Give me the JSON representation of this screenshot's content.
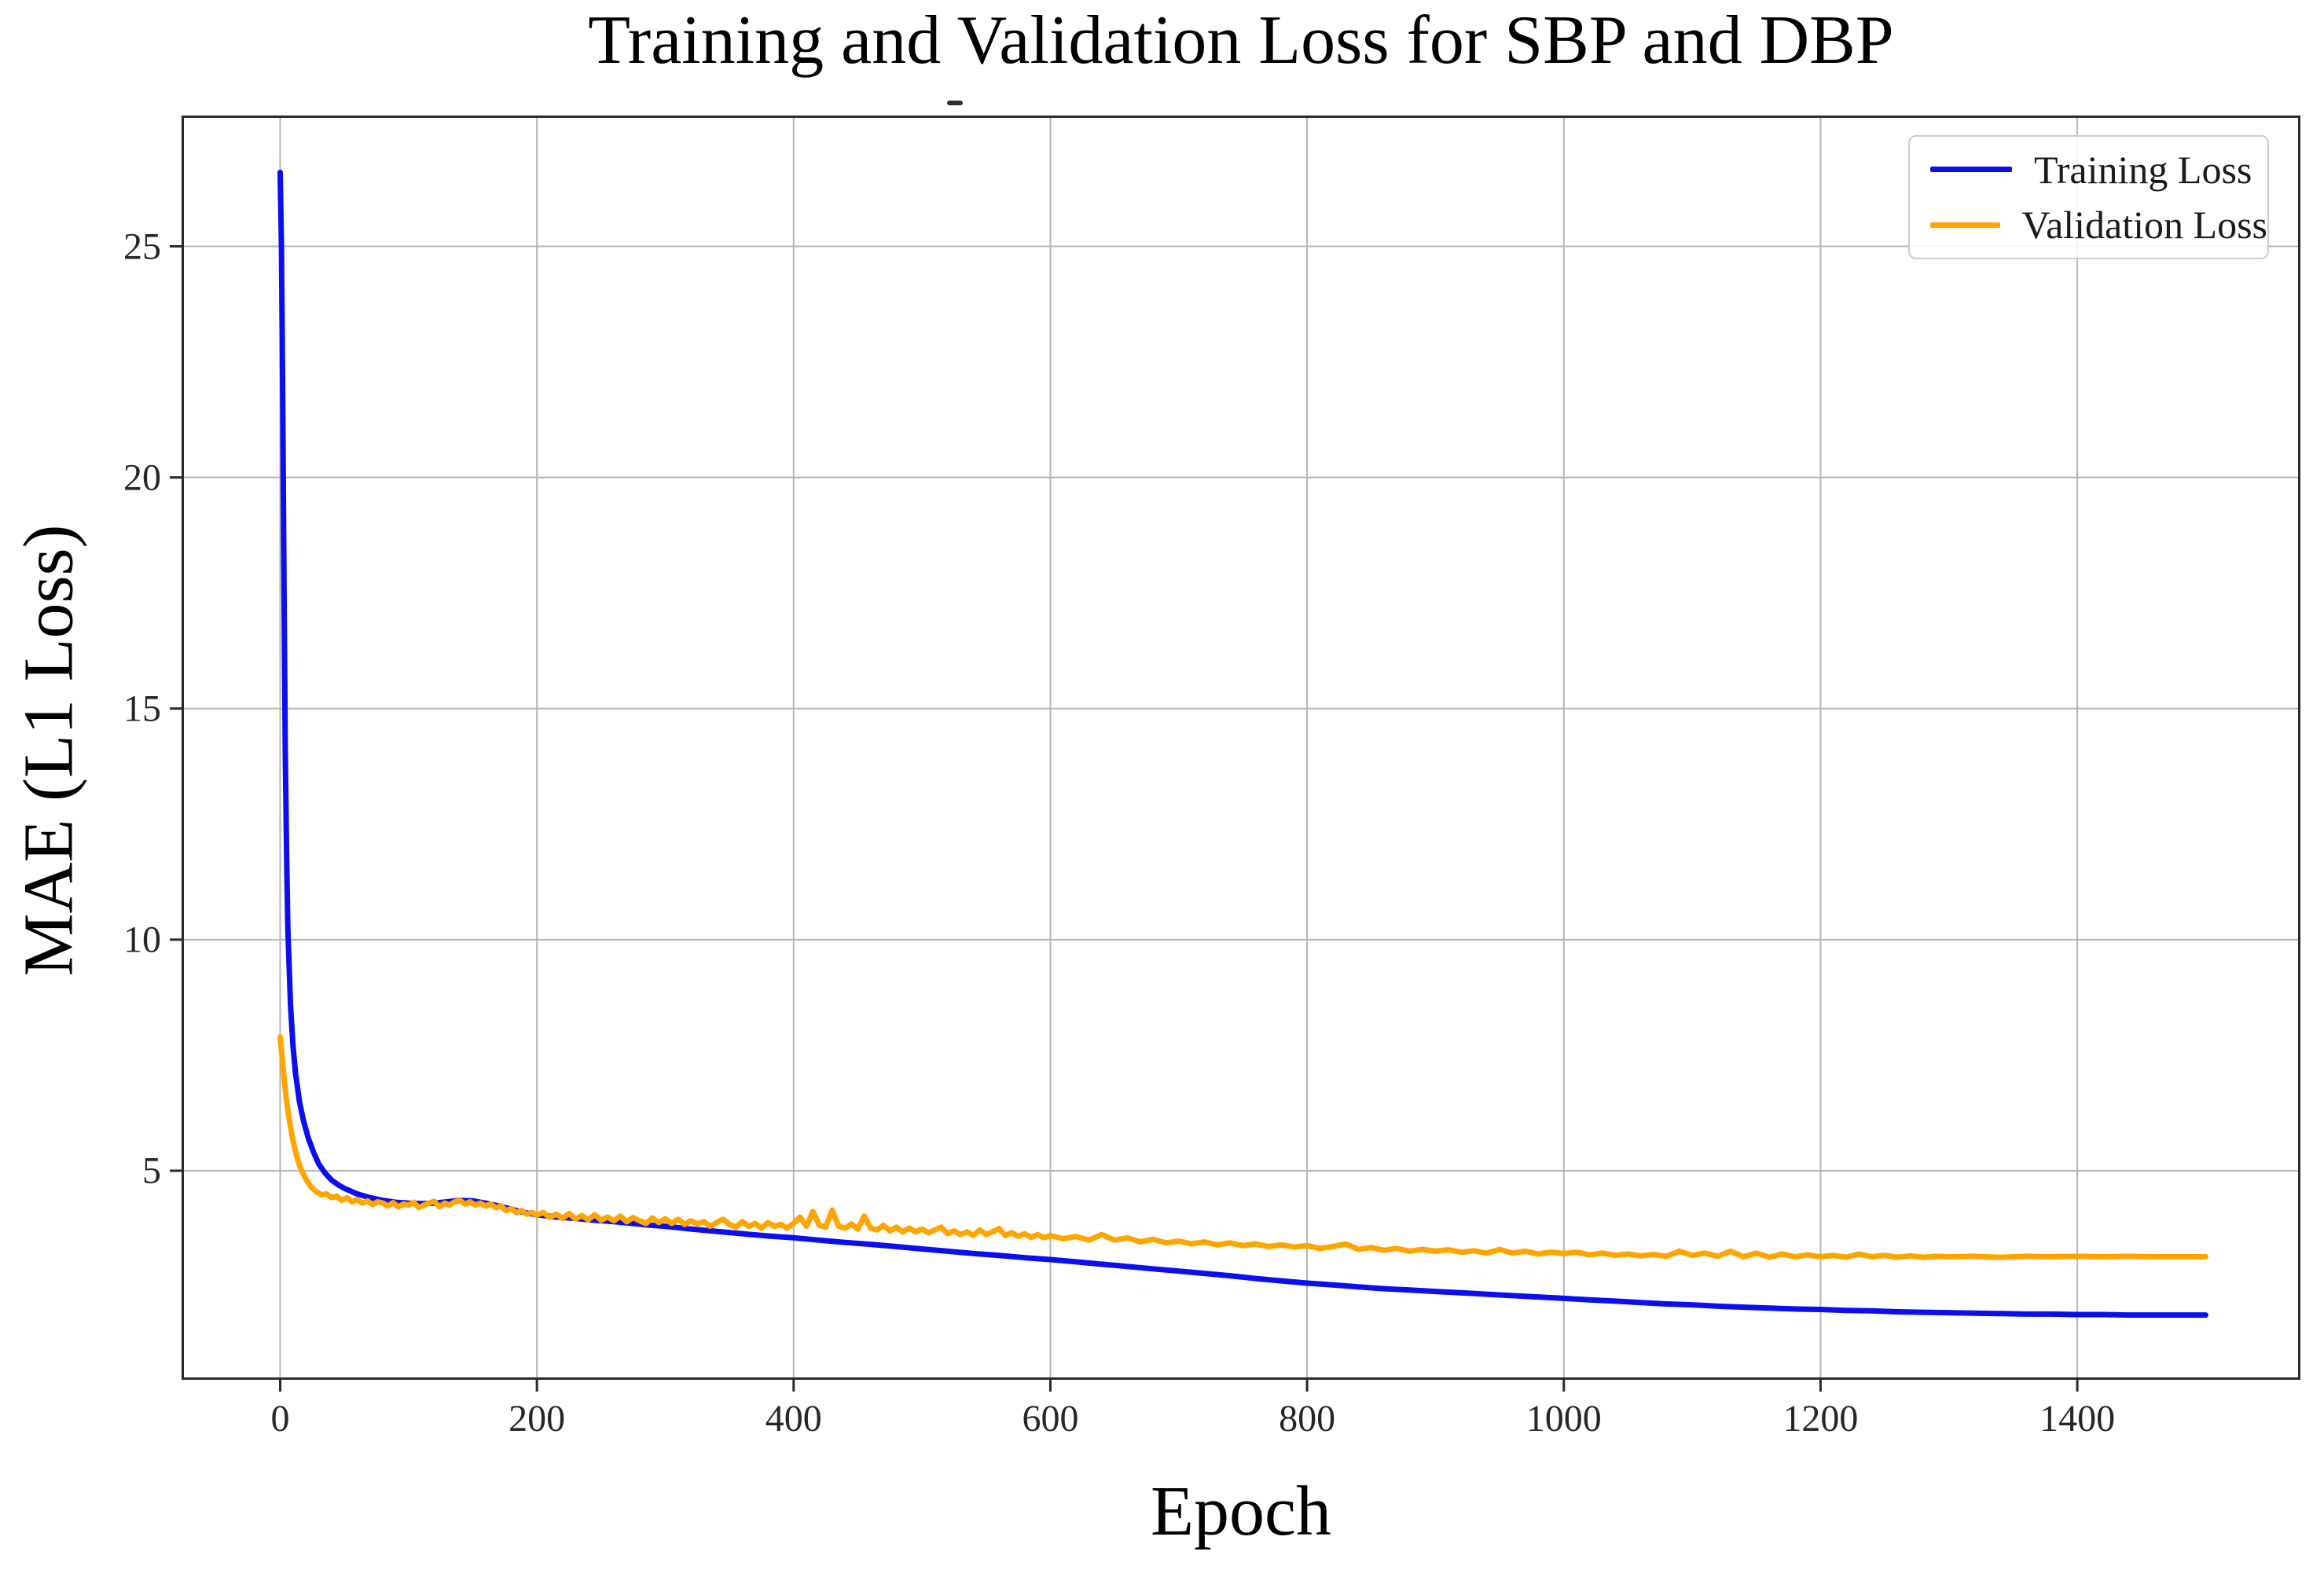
{
  "title": "Training and Validation Loss for SBP and DBP",
  "colors": {
    "training": "#0d0df2",
    "validation": "#ffa500",
    "grid": "#b5b5b5",
    "spine": "#2a2a2a",
    "tick_text": "#262626"
  },
  "chart_data": {
    "type": "line",
    "title": "Training and Validation Loss for SBP and DBP",
    "xlabel": "Epoch",
    "ylabel": "MAE (L1 Loss)",
    "xlim": [
      -75,
      1572
    ],
    "ylim": [
      0.53,
      27.78
    ],
    "xticks": [
      0,
      200,
      400,
      600,
      800,
      1000,
      1200,
      1400
    ],
    "yticks": [
      5,
      10,
      15,
      20,
      25
    ],
    "grid": true,
    "legend_position": "upper right",
    "series": [
      {
        "name": "Training Loss",
        "color": "#0d0df2",
        "points": [
          [
            0,
            26.6
          ],
          [
            1,
            25.0
          ],
          [
            2,
            21.5
          ],
          [
            3,
            17.5
          ],
          [
            4,
            14.0
          ],
          [
            5,
            11.8
          ],
          [
            6,
            10.2
          ],
          [
            8,
            8.6
          ],
          [
            10,
            7.7
          ],
          [
            12,
            7.1
          ],
          [
            15,
            6.5
          ],
          [
            18,
            6.1
          ],
          [
            22,
            5.7
          ],
          [
            26,
            5.4
          ],
          [
            30,
            5.15
          ],
          [
            35,
            4.95
          ],
          [
            40,
            4.8
          ],
          [
            45,
            4.7
          ],
          [
            50,
            4.62
          ],
          [
            60,
            4.5
          ],
          [
            70,
            4.42
          ],
          [
            80,
            4.36
          ],
          [
            90,
            4.32
          ],
          [
            100,
            4.3
          ],
          [
            110,
            4.29
          ],
          [
            120,
            4.3
          ],
          [
            130,
            4.33
          ],
          [
            140,
            4.36
          ],
          [
            150,
            4.35
          ],
          [
            160,
            4.3
          ],
          [
            170,
            4.24
          ],
          [
            180,
            4.17
          ],
          [
            190,
            4.1
          ],
          [
            200,
            4.05
          ],
          [
            215,
            4.0
          ],
          [
            230,
            3.97
          ],
          [
            245,
            3.93
          ],
          [
            260,
            3.9
          ],
          [
            275,
            3.86
          ],
          [
            290,
            3.82
          ],
          [
            300,
            3.8
          ],
          [
            320,
            3.74
          ],
          [
            340,
            3.69
          ],
          [
            360,
            3.64
          ],
          [
            380,
            3.59
          ],
          [
            400,
            3.55
          ],
          [
            420,
            3.5
          ],
          [
            440,
            3.45
          ],
          [
            460,
            3.41
          ],
          [
            480,
            3.36
          ],
          [
            500,
            3.31
          ],
          [
            520,
            3.26
          ],
          [
            540,
            3.21
          ],
          [
            560,
            3.17
          ],
          [
            580,
            3.12
          ],
          [
            600,
            3.08
          ],
          [
            620,
            3.03
          ],
          [
            640,
            2.98
          ],
          [
            660,
            2.93
          ],
          [
            680,
            2.88
          ],
          [
            700,
            2.83
          ],
          [
            720,
            2.78
          ],
          [
            740,
            2.73
          ],
          [
            760,
            2.67
          ],
          [
            780,
            2.62
          ],
          [
            800,
            2.57
          ],
          [
            820,
            2.53
          ],
          [
            840,
            2.49
          ],
          [
            860,
            2.45
          ],
          [
            880,
            2.42
          ],
          [
            900,
            2.39
          ],
          [
            920,
            2.36
          ],
          [
            940,
            2.33
          ],
          [
            960,
            2.3
          ],
          [
            980,
            2.27
          ],
          [
            1000,
            2.24
          ],
          [
            1020,
            2.21
          ],
          [
            1040,
            2.18
          ],
          [
            1060,
            2.15
          ],
          [
            1080,
            2.12
          ],
          [
            1100,
            2.1
          ],
          [
            1120,
            2.07
          ],
          [
            1140,
            2.05
          ],
          [
            1160,
            2.03
          ],
          [
            1180,
            2.01
          ],
          [
            1200,
            2.0
          ],
          [
            1220,
            1.98
          ],
          [
            1240,
            1.97
          ],
          [
            1260,
            1.95
          ],
          [
            1280,
            1.94
          ],
          [
            1300,
            1.93
          ],
          [
            1320,
            1.92
          ],
          [
            1340,
            1.91
          ],
          [
            1360,
            1.9
          ],
          [
            1380,
            1.9
          ],
          [
            1400,
            1.89
          ],
          [
            1420,
            1.89
          ],
          [
            1440,
            1.88
          ],
          [
            1460,
            1.88
          ],
          [
            1480,
            1.88
          ],
          [
            1500,
            1.88
          ]
        ]
      },
      {
        "name": "Validation Loss",
        "color": "#ffa500",
        "points": [
          [
            0,
            7.9
          ],
          [
            2,
            7.3
          ],
          [
            4,
            6.75
          ],
          [
            6,
            6.3
          ],
          [
            8,
            5.95
          ],
          [
            10,
            5.65
          ],
          [
            13,
            5.3
          ],
          [
            16,
            5.05
          ],
          [
            20,
            4.82
          ],
          [
            24,
            4.65
          ],
          [
            28,
            4.55
          ],
          [
            32,
            4.48
          ],
          [
            36,
            4.5
          ],
          [
            40,
            4.42
          ],
          [
            44,
            4.45
          ],
          [
            48,
            4.36
          ],
          [
            52,
            4.42
          ],
          [
            56,
            4.33
          ],
          [
            60,
            4.38
          ],
          [
            64,
            4.3
          ],
          [
            68,
            4.35
          ],
          [
            72,
            4.27
          ],
          [
            76,
            4.33
          ],
          [
            80,
            4.3
          ],
          [
            84,
            4.24
          ],
          [
            88,
            4.31
          ],
          [
            92,
            4.22
          ],
          [
            96,
            4.28
          ],
          [
            100,
            4.26
          ],
          [
            104,
            4.32
          ],
          [
            108,
            4.2
          ],
          [
            112,
            4.26
          ],
          [
            116,
            4.3
          ],
          [
            120,
            4.34
          ],
          [
            124,
            4.22
          ],
          [
            128,
            4.3
          ],
          [
            132,
            4.26
          ],
          [
            136,
            4.33
          ],
          [
            140,
            4.36
          ],
          [
            144,
            4.28
          ],
          [
            148,
            4.33
          ],
          [
            152,
            4.26
          ],
          [
            156,
            4.3
          ],
          [
            160,
            4.24
          ],
          [
            164,
            4.28
          ],
          [
            168,
            4.2
          ],
          [
            172,
            4.24
          ],
          [
            176,
            4.14
          ],
          [
            180,
            4.18
          ],
          [
            184,
            4.1
          ],
          [
            188,
            4.14
          ],
          [
            192,
            4.06
          ],
          [
            196,
            4.1
          ],
          [
            200,
            4.04
          ],
          [
            205,
            4.1
          ],
          [
            210,
            3.99
          ],
          [
            215,
            4.06
          ],
          [
            220,
            3.97
          ],
          [
            225,
            4.08
          ],
          [
            230,
            3.96
          ],
          [
            235,
            4.03
          ],
          [
            240,
            3.94
          ],
          [
            245,
            4.05
          ],
          [
            250,
            3.93
          ],
          [
            255,
            4.0
          ],
          [
            260,
            3.92
          ],
          [
            265,
            4.02
          ],
          [
            270,
            3.9
          ],
          [
            275,
            3.99
          ],
          [
            280,
            3.92
          ],
          [
            285,
            3.86
          ],
          [
            290,
            3.98
          ],
          [
            295,
            3.88
          ],
          [
            300,
            3.96
          ],
          [
            305,
            3.86
          ],
          [
            310,
            3.95
          ],
          [
            315,
            3.84
          ],
          [
            320,
            3.92
          ],
          [
            325,
            3.85
          ],
          [
            330,
            3.9
          ],
          [
            335,
            3.8
          ],
          [
            340,
            3.88
          ],
          [
            345,
            3.95
          ],
          [
            350,
            3.84
          ],
          [
            355,
            3.78
          ],
          [
            360,
            3.9
          ],
          [
            365,
            3.8
          ],
          [
            370,
            3.86
          ],
          [
            375,
            3.76
          ],
          [
            380,
            3.88
          ],
          [
            385,
            3.8
          ],
          [
            390,
            3.84
          ],
          [
            395,
            3.76
          ],
          [
            400,
            3.86
          ],
          [
            405,
            4.0
          ],
          [
            410,
            3.8
          ],
          [
            415,
            4.12
          ],
          [
            420,
            3.82
          ],
          [
            425,
            3.78
          ],
          [
            430,
            4.15
          ],
          [
            435,
            3.8
          ],
          [
            440,
            3.76
          ],
          [
            445,
            3.85
          ],
          [
            450,
            3.74
          ],
          [
            455,
            4.02
          ],
          [
            460,
            3.76
          ],
          [
            465,
            3.72
          ],
          [
            470,
            3.82
          ],
          [
            475,
            3.7
          ],
          [
            480,
            3.78
          ],
          [
            485,
            3.68
          ],
          [
            490,
            3.76
          ],
          [
            495,
            3.68
          ],
          [
            500,
            3.74
          ],
          [
            505,
            3.66
          ],
          [
            510,
            3.72
          ],
          [
            515,
            3.78
          ],
          [
            520,
            3.64
          ],
          [
            525,
            3.7
          ],
          [
            530,
            3.62
          ],
          [
            535,
            3.68
          ],
          [
            540,
            3.6
          ],
          [
            545,
            3.72
          ],
          [
            550,
            3.62
          ],
          [
            555,
            3.68
          ],
          [
            560,
            3.75
          ],
          [
            565,
            3.6
          ],
          [
            570,
            3.66
          ],
          [
            575,
            3.58
          ],
          [
            580,
            3.64
          ],
          [
            585,
            3.56
          ],
          [
            590,
            3.62
          ],
          [
            595,
            3.55
          ],
          [
            600,
            3.6
          ],
          [
            610,
            3.53
          ],
          [
            620,
            3.58
          ],
          [
            630,
            3.5
          ],
          [
            640,
            3.62
          ],
          [
            650,
            3.5
          ],
          [
            660,
            3.55
          ],
          [
            670,
            3.46
          ],
          [
            680,
            3.52
          ],
          [
            690,
            3.44
          ],
          [
            700,
            3.48
          ],
          [
            710,
            3.42
          ],
          [
            720,
            3.46
          ],
          [
            730,
            3.4
          ],
          [
            740,
            3.44
          ],
          [
            750,
            3.38
          ],
          [
            760,
            3.42
          ],
          [
            770,
            3.36
          ],
          [
            780,
            3.4
          ],
          [
            790,
            3.35
          ],
          [
            800,
            3.38
          ],
          [
            810,
            3.32
          ],
          [
            820,
            3.36
          ],
          [
            830,
            3.42
          ],
          [
            840,
            3.3
          ],
          [
            850,
            3.34
          ],
          [
            860,
            3.28
          ],
          [
            870,
            3.32
          ],
          [
            880,
            3.26
          ],
          [
            890,
            3.3
          ],
          [
            900,
            3.26
          ],
          [
            910,
            3.29
          ],
          [
            920,
            3.24
          ],
          [
            930,
            3.27
          ],
          [
            940,
            3.22
          ],
          [
            950,
            3.3
          ],
          [
            960,
            3.22
          ],
          [
            970,
            3.26
          ],
          [
            980,
            3.2
          ],
          [
            990,
            3.24
          ],
          [
            1000,
            3.21
          ],
          [
            1010,
            3.24
          ],
          [
            1020,
            3.18
          ],
          [
            1030,
            3.22
          ],
          [
            1040,
            3.17
          ],
          [
            1050,
            3.2
          ],
          [
            1060,
            3.16
          ],
          [
            1070,
            3.19
          ],
          [
            1080,
            3.15
          ],
          [
            1090,
            3.26
          ],
          [
            1100,
            3.17
          ],
          [
            1110,
            3.22
          ],
          [
            1120,
            3.15
          ],
          [
            1130,
            3.26
          ],
          [
            1140,
            3.14
          ],
          [
            1150,
            3.22
          ],
          [
            1160,
            3.13
          ],
          [
            1170,
            3.2
          ],
          [
            1180,
            3.14
          ],
          [
            1190,
            3.18
          ],
          [
            1200,
            3.14
          ],
          [
            1210,
            3.17
          ],
          [
            1220,
            3.13
          ],
          [
            1230,
            3.2
          ],
          [
            1240,
            3.14
          ],
          [
            1250,
            3.17
          ],
          [
            1260,
            3.13
          ],
          [
            1270,
            3.16
          ],
          [
            1280,
            3.13
          ],
          [
            1290,
            3.15
          ],
          [
            1300,
            3.14
          ],
          [
            1320,
            3.15
          ],
          [
            1340,
            3.13
          ],
          [
            1360,
            3.15
          ],
          [
            1380,
            3.14
          ],
          [
            1400,
            3.15
          ],
          [
            1420,
            3.14
          ],
          [
            1440,
            3.15
          ],
          [
            1460,
            3.14
          ],
          [
            1480,
            3.14
          ],
          [
            1500,
            3.14
          ]
        ]
      }
    ]
  }
}
